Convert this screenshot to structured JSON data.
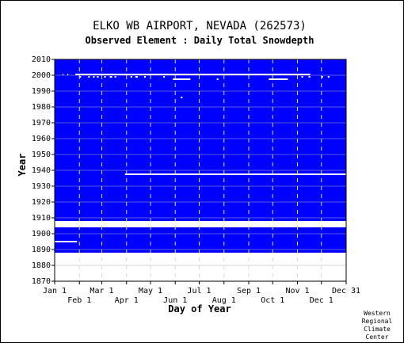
{
  "chart_data": {
    "type": "heatmap",
    "title": "ELKO WB AIRPORT, NEVADA   (262573)",
    "subtitle": "Observed Element : Daily Total Snowdepth",
    "xlabel": "Day of Year",
    "ylabel": "Year",
    "ylim": [
      1870,
      2010
    ],
    "yticks": [
      1870,
      1880,
      1890,
      1900,
      1910,
      1920,
      1930,
      1940,
      1950,
      1960,
      1970,
      1980,
      1990,
      2000,
      2010
    ],
    "xticks_upper": [
      {
        "label": "Jan 1",
        "day": 0
      },
      {
        "label": "Mar 1",
        "day": 59
      },
      {
        "label": "May 1",
        "day": 120
      },
      {
        "label": "Jul 1",
        "day": 181
      },
      {
        "label": "Sep 1",
        "day": 243
      },
      {
        "label": "Nov 1",
        "day": 304
      },
      {
        "label": "Dec 31",
        "day": 365
      }
    ],
    "xticks_lower": [
      {
        "label": "Feb 1",
        "day": 31
      },
      {
        "label": "Apr 1",
        "day": 90
      },
      {
        "label": "Jun 1",
        "day": 151
      },
      {
        "label": "Aug 1",
        "day": 212
      },
      {
        "label": "Oct 1",
        "day": 273
      },
      {
        "label": "Dec 1",
        "day": 334
      }
    ],
    "data_color": "#0000ff",
    "missing_color": "#ffffff",
    "observed_periods": [
      {
        "start_year": 1888,
        "end_year": 1904
      },
      {
        "start_year": 1908,
        "end_year": 2010
      }
    ],
    "missing_records": [
      {
        "year": 1895,
        "start_day": 0,
        "end_day": 28
      },
      {
        "year": 1937.5,
        "start_day": 88,
        "end_day": 365
      },
      {
        "year": 1986,
        "start_day": 158,
        "end_day": 160
      },
      {
        "year": 1997.5,
        "start_day": 148,
        "end_day": 170
      },
      {
        "year": 1997.5,
        "start_day": 268,
        "end_day": 292
      },
      {
        "year": 1997.5,
        "start_day": 203,
        "end_day": 205
      },
      {
        "year": 2000.5,
        "start_day": 26,
        "end_day": 320
      },
      {
        "year": 2000.5,
        "start_day": 10,
        "end_day": 11
      },
      {
        "year": 2000.5,
        "start_day": 16,
        "end_day": 17
      },
      {
        "year": 1999,
        "start_day": 31,
        "end_day": 33
      },
      {
        "year": 1999,
        "start_day": 42,
        "end_day": 44
      },
      {
        "year": 1999,
        "start_day": 48,
        "end_day": 50
      },
      {
        "year": 1999,
        "start_day": 53,
        "end_day": 55
      },
      {
        "year": 1999,
        "start_day": 62,
        "end_day": 64
      },
      {
        "year": 1999,
        "start_day": 69,
        "end_day": 72
      },
      {
        "year": 1999,
        "start_day": 75,
        "end_day": 77
      },
      {
        "year": 1999,
        "start_day": 95,
        "end_day": 97
      },
      {
        "year": 1999,
        "start_day": 101,
        "end_day": 104
      },
      {
        "year": 1999,
        "start_day": 112,
        "end_day": 114
      },
      {
        "year": 1999,
        "start_day": 136,
        "end_day": 138
      },
      {
        "year": 1999,
        "start_day": 309,
        "end_day": 311
      },
      {
        "year": 1999,
        "start_day": 318,
        "end_day": 320
      },
      {
        "year": 1999,
        "start_day": 334,
        "end_day": 336
      },
      {
        "year": 1999,
        "start_day": 342,
        "end_day": 344
      }
    ],
    "grid": true
  },
  "credit": [
    "Western",
    "Regional",
    "Climate",
    "Center"
  ]
}
